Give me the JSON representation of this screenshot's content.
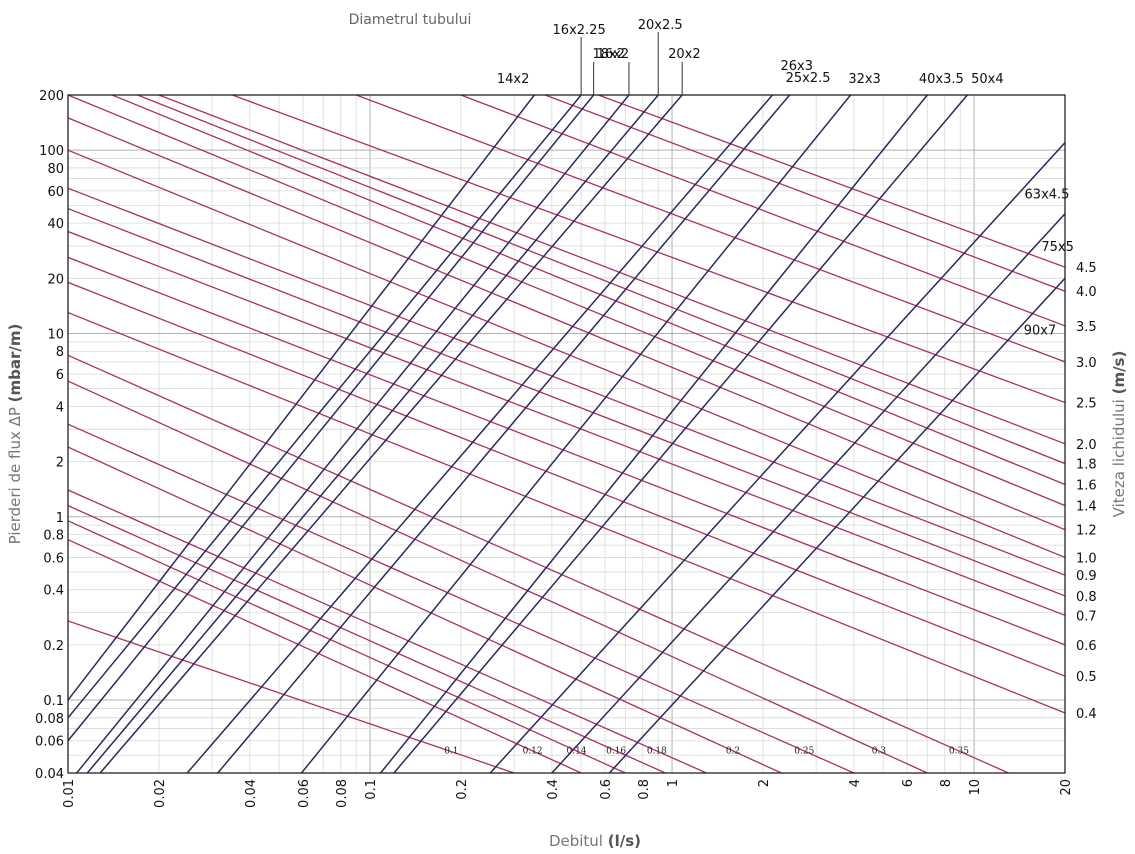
{
  "chart_data": {
    "type": "line",
    "title": "Diametrul tubului",
    "xlabel": "Debitul",
    "xlabel_unit": "(l/s)",
    "ylabel_left": "Pierderi de flux ΔP",
    "ylabel_left_unit": "(mbar/m)",
    "ylabel_right": "Viteza lichidului",
    "ylabel_right_unit": "(m/s)",
    "x_scale": "log",
    "y_scale": "log",
    "xlim": [
      0.01,
      20
    ],
    "ylim": [
      0.04,
      200
    ],
    "grid": true,
    "x_ticks": [
      "0.01",
      "0.02",
      "0.04",
      "0.06",
      "0.08",
      "0.1",
      "0.2",
      "0.4",
      "0.6",
      "0.8",
      "1",
      "2",
      "4",
      "6",
      "8",
      "10",
      "20"
    ],
    "y_ticks": [
      "0.04",
      "0.06",
      "0.08",
      "0.1",
      "0.2",
      "0.4",
      "0.6",
      "0.8",
      "1",
      "2",
      "4",
      "6",
      "8",
      "10",
      "20",
      "40",
      "60",
      "80",
      "100",
      "200"
    ],
    "pipe_series": [
      {
        "name": "14x2",
        "points": [
          [
            0.01,
            0.1
          ],
          [
            0.35,
            200
          ]
        ]
      },
      {
        "name": "16x2.25",
        "points": [
          [
            0.01,
            0.08
          ],
          [
            0.5,
            200
          ]
        ]
      },
      {
        "name": "16x2",
        "points": [
          [
            0.01,
            0.06
          ],
          [
            0.55,
            200
          ]
        ]
      },
      {
        "name": "18x2",
        "points": [
          [
            0.01,
            0.035
          ],
          [
            0.72,
            200
          ]
        ]
      },
      {
        "name": "20x2.5",
        "points": [
          [
            0.01,
            0.03
          ],
          [
            0.9,
            200
          ]
        ]
      },
      {
        "name": "20x2",
        "points": [
          [
            0.01,
            0.025
          ],
          [
            1.08,
            200
          ]
        ]
      },
      {
        "name": "26x3",
        "points": [
          [
            0.012,
            0.01
          ],
          [
            2.15,
            200
          ]
        ]
      },
      {
        "name": "25x2.5",
        "points": [
          [
            0.015,
            0.0095
          ],
          [
            2.45,
            200
          ]
        ]
      },
      {
        "name": "32x3",
        "points": [
          [
            0.03,
            0.01
          ],
          [
            3.9,
            200
          ]
        ]
      },
      {
        "name": "40x3.5",
        "points": [
          [
            0.055,
            0.01
          ],
          [
            7.0,
            200
          ]
        ]
      },
      {
        "name": "50x4",
        "points": [
          [
            0.12,
            0.04
          ],
          [
            9.5,
            200
          ]
        ]
      },
      {
        "name": "63x4.5",
        "points": [
          [
            0.25,
            0.04
          ],
          [
            20,
            110
          ]
        ]
      },
      {
        "name": "75x5",
        "points": [
          [
            0.4,
            0.04
          ],
          [
            20,
            45
          ]
        ]
      },
      {
        "name": "90x7",
        "points": [
          [
            0.62,
            0.04
          ],
          [
            20,
            20
          ]
        ]
      }
    ],
    "pipe_label_positions": [
      "14x2",
      "16x2.25",
      "16x2",
      "18x2",
      "20x2.5",
      "20x2",
      "26x3",
      "25x2.5",
      "32x3",
      "40x3.5",
      "50x4",
      "63x4.5",
      "75x5",
      "90x7"
    ],
    "velocity_series": [
      {
        "name": "4.5",
        "points": [
          [
            0.57,
            200
          ],
          [
            20,
            23
          ]
        ]
      },
      {
        "name": "4.0",
        "points": [
          [
            0.38,
            200
          ],
          [
            20,
            17
          ]
        ]
      },
      {
        "name": "3.5",
        "points": [
          [
            0.2,
            200
          ],
          [
            20,
            11
          ]
        ]
      },
      {
        "name": "3.0",
        "points": [
          [
            0.09,
            200
          ],
          [
            20,
            7
          ]
        ]
      },
      {
        "name": "2.5",
        "points": [
          [
            0.035,
            200
          ],
          [
            20,
            4.2
          ]
        ]
      },
      {
        "name": "2.0",
        "points": [
          [
            0.02,
            200
          ],
          [
            20,
            2.5
          ]
        ]
      },
      {
        "name": "1.8",
        "points": [
          [
            0.017,
            200
          ],
          [
            20,
            1.95
          ]
        ]
      },
      {
        "name": "1.6",
        "points": [
          [
            0.014,
            200
          ],
          [
            20,
            1.5
          ]
        ]
      },
      {
        "name": "1.4",
        "points": [
          [
            0.01,
            200
          ],
          [
            20,
            1.15
          ]
        ]
      },
      {
        "name": "1.2",
        "points": [
          [
            0.01,
            150
          ],
          [
            20,
            0.85
          ]
        ]
      },
      {
        "name": "1.0",
        "points": [
          [
            0.01,
            100
          ],
          [
            20,
            0.6
          ]
        ]
      },
      {
        "name": "0.9",
        "points": [
          [
            0.01,
            62
          ],
          [
            20,
            0.48
          ]
        ]
      },
      {
        "name": "0.8",
        "points": [
          [
            0.01,
            48
          ],
          [
            20,
            0.37
          ]
        ]
      },
      {
        "name": "0.7",
        "points": [
          [
            0.01,
            36
          ],
          [
            20,
            0.29
          ]
        ]
      },
      {
        "name": "0.6",
        "points": [
          [
            0.01,
            26
          ],
          [
            20,
            0.2
          ]
        ]
      },
      {
        "name": "0.5",
        "points": [
          [
            0.01,
            19
          ],
          [
            20,
            0.135
          ]
        ]
      },
      {
        "name": "0.4",
        "points": [
          [
            0.01,
            13
          ],
          [
            20,
            0.085
          ]
        ]
      },
      {
        "name": "0.35",
        "points": [
          [
            0.01,
            7.6
          ],
          [
            13,
            0.04
          ]
        ]
      },
      {
        "name": "0.3",
        "points": [
          [
            0.01,
            5.5
          ],
          [
            7,
            0.04
          ]
        ]
      },
      {
        "name": "0.25",
        "points": [
          [
            0.01,
            3.2
          ],
          [
            4,
            0.04
          ]
        ]
      },
      {
        "name": "0.2",
        "points": [
          [
            0.01,
            2.4
          ],
          [
            2.3,
            0.04
          ]
        ]
      },
      {
        "name": "0.18",
        "points": [
          [
            0.01,
            1.4
          ],
          [
            1.3,
            0.04
          ]
        ]
      },
      {
        "name": "0.16",
        "points": [
          [
            0.01,
            1.15
          ],
          [
            0.95,
            0.04
          ]
        ]
      },
      {
        "name": "0.14",
        "points": [
          [
            0.01,
            0.95
          ],
          [
            0.7,
            0.04
          ]
        ]
      },
      {
        "name": "0.12",
        "points": [
          [
            0.01,
            0.75
          ],
          [
            0.5,
            0.04
          ]
        ]
      },
      {
        "name": "0.1",
        "points": [
          [
            0.01,
            0.27
          ],
          [
            0.3,
            0.04
          ]
        ]
      }
    ],
    "velocity_right_labels": [
      "4.5",
      "4.0",
      "3.5",
      "3.0",
      "2.5",
      "2.0",
      "1.8",
      "1.6",
      "1.4",
      "1.2",
      "1.0",
      "0.9",
      "0.8",
      "0.7",
      "0.6",
      "0.5",
      "0.4"
    ],
    "velocity_bottom_labels": [
      "0.1",
      "0.12",
      "0.14",
      "0.16",
      "0.18",
      "0.2",
      "0.25",
      "0.3",
      "0.35"
    ],
    "colors": {
      "pipe_line": "#2b2a5c",
      "velocity_line": "#a8325f",
      "grid_major": "#b0b0b0",
      "grid_minor": "#d8d8d8"
    }
  }
}
